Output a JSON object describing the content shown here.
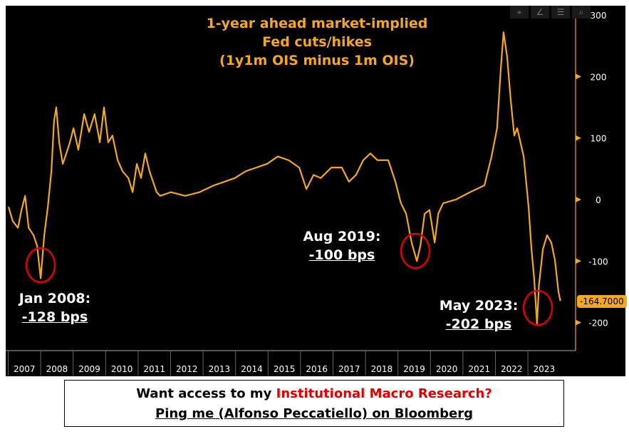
{
  "chart_data": {
    "type": "line",
    "title": [
      "1-year ahead market-implied",
      "Fed cuts/hikes",
      "(1y1m OIS minus 1m OIS)"
    ],
    "xlim": [
      2007,
      2024
    ],
    "ylim": [
      -245,
      320
    ],
    "yticks": [
      300,
      200,
      100,
      0,
      -100,
      -200
    ],
    "xticks": [
      "2007",
      "2008",
      "2009",
      "2010",
      "2011",
      "2012",
      "2013",
      "2014",
      "2015",
      "2016",
      "2017",
      "2018",
      "2019",
      "2020",
      "2021",
      "2022",
      "2023"
    ],
    "grid": false,
    "line_color": "#f5a623",
    "last_value_label": "-164.7000",
    "x": [
      2007.01,
      2007.14,
      2007.3,
      2007.41,
      2007.52,
      2007.63,
      2007.78,
      2007.89,
      2008.0,
      2008.11,
      2008.22,
      2008.33,
      2008.41,
      2008.48,
      2008.57,
      2008.68,
      2008.79,
      2008.9,
      2009.01,
      2009.16,
      2009.34,
      2009.49,
      2009.66,
      2009.82,
      2009.95,
      2010.08,
      2010.21,
      2010.37,
      2010.52,
      2010.7,
      2010.83,
      2010.96,
      2011.09,
      2011.22,
      2011.35,
      2011.46,
      2011.57,
      2011.68,
      2012.01,
      2012.45,
      2012.89,
      2013.33,
      2013.66,
      2013.98,
      2014.31,
      2014.64,
      2014.97,
      2015.3,
      2015.63,
      2015.96,
      2016.18,
      2016.4,
      2016.62,
      2016.95,
      2017.27,
      2017.49,
      2017.71,
      2017.93,
      2018.15,
      2018.37,
      2018.7,
      2018.92,
      2019.09,
      2019.25,
      2019.42,
      2019.58,
      2019.69,
      2019.82,
      2019.97,
      2020.13,
      2020.24,
      2020.39,
      2020.78,
      2021.22,
      2021.66,
      2021.88,
      2022.05,
      2022.16,
      2022.25,
      2022.36,
      2022.47,
      2022.58,
      2022.67,
      2022.87,
      2023.02,
      2023.11,
      2023.19,
      2023.28,
      2023.34,
      2023.46,
      2023.59,
      2023.72,
      2023.83,
      2023.94,
      2024.0
    ],
    "y": [
      -12,
      -35,
      -46,
      -17,
      6,
      -46,
      -58,
      -75,
      -128,
      -58,
      -12,
      46,
      127,
      150,
      93,
      58,
      75,
      93,
      116,
      81,
      139,
      110,
      139,
      93,
      150,
      93,
      104,
      64,
      46,
      35,
      12,
      58,
      35,
      75,
      46,
      29,
      12,
      6,
      12,
      6,
      12,
      23,
      29,
      35,
      46,
      52,
      58,
      70,
      64,
      52,
      17,
      40,
      35,
      52,
      52,
      29,
      40,
      64,
      75,
      64,
      64,
      29,
      -6,
      -23,
      -70,
      -100,
      -75,
      -23,
      -17,
      -70,
      -23,
      -6,
      0,
      12,
      23,
      70,
      116,
      209,
      272,
      232,
      162,
      104,
      116,
      70,
      -12,
      -81,
      -127,
      -202,
      -139,
      -81,
      -58,
      -70,
      -98,
      -150,
      -164.7
    ]
  },
  "annotations": [
    {
      "label": "Jan 2008:",
      "value": "-128 bps"
    },
    {
      "label": "Aug 2019:",
      "value": "-100 bps"
    },
    {
      "label": "May 2023:",
      "value": "-202 bps"
    }
  ],
  "footer": {
    "line1_pre": "Want access to my ",
    "line1_highlight": "Institutional Macro Research?",
    "line2": "Ping me (Alfonso Peccatiello) on Bloomberg"
  }
}
